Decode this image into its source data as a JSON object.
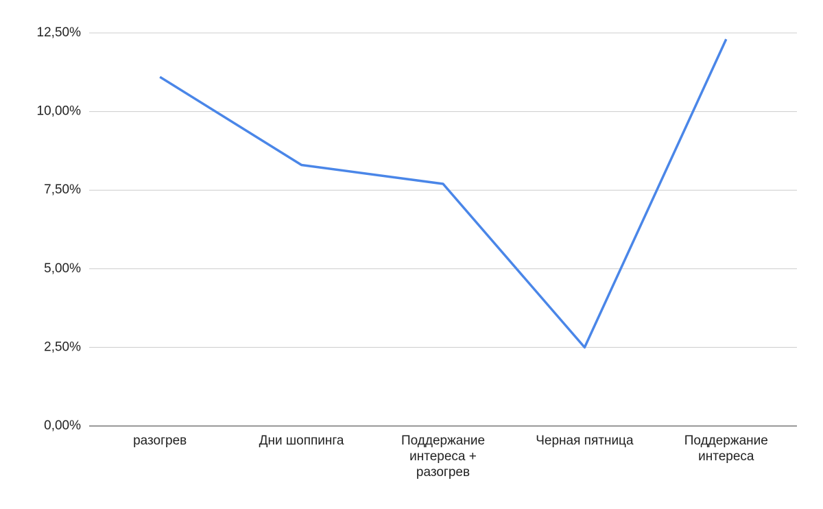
{
  "chart_data": {
    "type": "line",
    "categories": [
      "разогрев",
      "Дни шоппинга",
      "Поддержание интереса + разогрев",
      "Черная пятница",
      "Поддержание интереса"
    ],
    "series": [
      {
        "color": "#4a86e8",
        "values": [
          11.1,
          8.3,
          7.7,
          2.5,
          12.3
        ]
      }
    ],
    "ylim": [
      0,
      12.5
    ],
    "yticks": [
      {
        "value": 0,
        "label": "0,00%"
      },
      {
        "value": 2.5,
        "label": "2,50%"
      },
      {
        "value": 5,
        "label": "5,00%"
      },
      {
        "value": 7.5,
        "label": "7,50%"
      },
      {
        "value": 10,
        "label": "10,00%"
      },
      {
        "value": 12.5,
        "label": "12,50%"
      }
    ],
    "grid": true
  }
}
